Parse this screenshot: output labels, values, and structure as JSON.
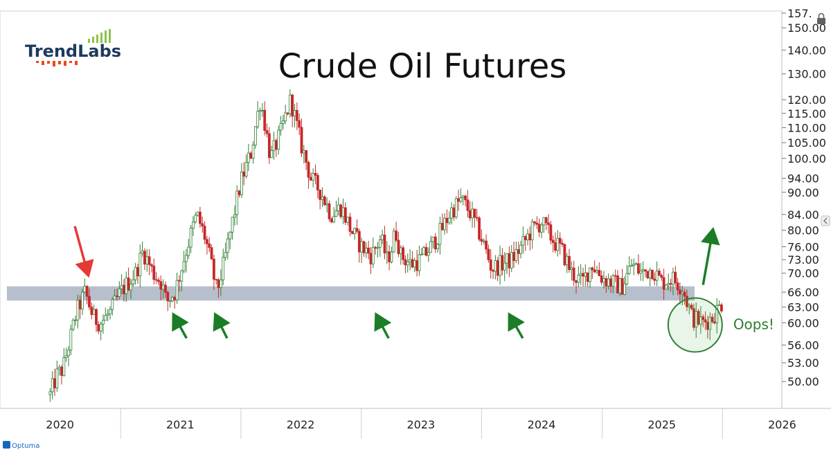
{
  "app": {
    "brand_name": "TrendLabs",
    "footer_brand": "Optuma"
  },
  "chart_data": {
    "type": "candlestick",
    "title": "Crude Oil Futures",
    "xlabel": "",
    "ylabel": "",
    "x_ticks": [
      "2020",
      "2021",
      "2022",
      "2023",
      "2024",
      "2025",
      "2026"
    ],
    "y_ticks": [
      "157.",
      "150.00",
      "140.00",
      "130.00",
      "120.00",
      "115.00",
      "110.00",
      "105.00",
      "100.00",
      "94.00",
      "90.00",
      "84.00",
      "80.00",
      "76.00",
      "73.00",
      "70.00",
      "66.00",
      "63.00",
      "60.00",
      "56.00",
      "53.00",
      "50.00"
    ],
    "y_scale": "log",
    "ylim": [
      46,
      158
    ],
    "xlim": [
      "2020-01-01",
      "2026-06-30"
    ],
    "support_zone": {
      "low": 64.3,
      "high": 67.2,
      "color": "#a9b4c2"
    },
    "up_color": "#2e7d32",
    "down_color": "#c62828",
    "anchors": [
      [
        "2020-06-01",
        48
      ],
      [
        "2020-06-22",
        51
      ],
      [
        "2020-07-10",
        52
      ],
      [
        "2020-08-01",
        57
      ],
      [
        "2020-08-20",
        62
      ],
      [
        "2020-09-15",
        66
      ],
      [
        "2020-10-10",
        61
      ],
      [
        "2020-11-01",
        60
      ],
      [
        "2020-12-01",
        62
      ],
      [
        "2021-01-01",
        66
      ],
      [
        "2021-02-15",
        70
      ],
      [
        "2021-03-10",
        75
      ],
      [
        "2021-04-10",
        70
      ],
      [
        "2021-05-05",
        68
      ],
      [
        "2021-05-20",
        64
      ],
      [
        "2021-06-15",
        66
      ],
      [
        "2021-07-15",
        74
      ],
      [
        "2021-08-20",
        84
      ],
      [
        "2021-09-15",
        78
      ],
      [
        "2021-10-20",
        66
      ],
      [
        "2021-11-10",
        72
      ],
      [
        "2021-12-01",
        80
      ],
      [
        "2022-01-01",
        93
      ],
      [
        "2022-02-01",
        102
      ],
      [
        "2022-03-01",
        120
      ],
      [
        "2022-04-01",
        100
      ],
      [
        "2022-05-01",
        108
      ],
      [
        "2022-06-01",
        120
      ],
      [
        "2022-07-01",
        105
      ],
      [
        "2022-08-01",
        94
      ],
      [
        "2022-09-01",
        90
      ],
      [
        "2022-10-01",
        84
      ],
      [
        "2022-11-01",
        86
      ],
      [
        "2022-12-01",
        80
      ],
      [
        "2023-01-01",
        76
      ],
      [
        "2023-02-01",
        74
      ],
      [
        "2023-03-01",
        78
      ],
      [
        "2023-03-20",
        73
      ],
      [
        "2023-04-01",
        75
      ],
      [
        "2023-04-15",
        80
      ],
      [
        "2023-05-01",
        74
      ],
      [
        "2023-06-01",
        72
      ],
      [
        "2023-07-01",
        73
      ],
      [
        "2023-08-01",
        76
      ],
      [
        "2023-09-01",
        80
      ],
      [
        "2023-10-01",
        85
      ],
      [
        "2023-11-01",
        88
      ],
      [
        "2023-12-01",
        84
      ],
      [
        "2024-01-01",
        78
      ],
      [
        "2024-02-01",
        71
      ],
      [
        "2024-03-01",
        72
      ],
      [
        "2024-04-01",
        73
      ],
      [
        "2024-05-01",
        76
      ],
      [
        "2024-06-01",
        80
      ],
      [
        "2024-07-01",
        82
      ],
      [
        "2024-08-01",
        78
      ],
      [
        "2024-09-01",
        75
      ],
      [
        "2024-10-01",
        70
      ],
      [
        "2024-11-01",
        68
      ],
      [
        "2024-12-01",
        72
      ],
      [
        "2025-01-01",
        69
      ],
      [
        "2025-02-01",
        68
      ],
      [
        "2025-03-01",
        67
      ],
      [
        "2025-04-01",
        72
      ],
      [
        "2025-05-01",
        70
      ],
      [
        "2025-06-01",
        71
      ],
      [
        "2025-07-01",
        68
      ],
      [
        "2025-08-01",
        69
      ],
      [
        "2025-09-01",
        67
      ],
      [
        "2025-10-01",
        61
      ],
      [
        "2025-11-01",
        60
      ],
      [
        "2025-12-01",
        61
      ],
      [
        "2026-01-01",
        64
      ]
    ],
    "annotations": [
      {
        "type": "arrow",
        "color": "red",
        "from": [
          "2020-08-15",
          81.0
        ],
        "to": [
          "2020-09-25",
          69.5
        ]
      },
      {
        "type": "arrow",
        "color": "green",
        "from": [
          "2021-07-20",
          57.2
        ],
        "to": [
          "2021-06-10",
          61.6
        ]
      },
      {
        "type": "arrow",
        "color": "green",
        "from": [
          "2021-11-20",
          57.2
        ],
        "to": [
          "2021-10-15",
          61.6
        ]
      },
      {
        "type": "arrow",
        "color": "green",
        "from": [
          "2023-03-25",
          57.2
        ],
        "to": [
          "2023-02-15",
          61.6
        ]
      },
      {
        "type": "arrow",
        "color": "green",
        "from": [
          "2024-05-05",
          57.2
        ],
        "to": [
          "2024-03-25",
          61.6
        ]
      },
      {
        "type": "arrow",
        "color": "green",
        "from": [
          "2025-11-03",
          67.5
        ],
        "to": [
          "2025-12-03",
          80.2
        ]
      },
      {
        "type": "circle",
        "color": "green",
        "center": [
          "2025-10-10",
          59.6
        ],
        "label": "Oops!"
      }
    ]
  }
}
